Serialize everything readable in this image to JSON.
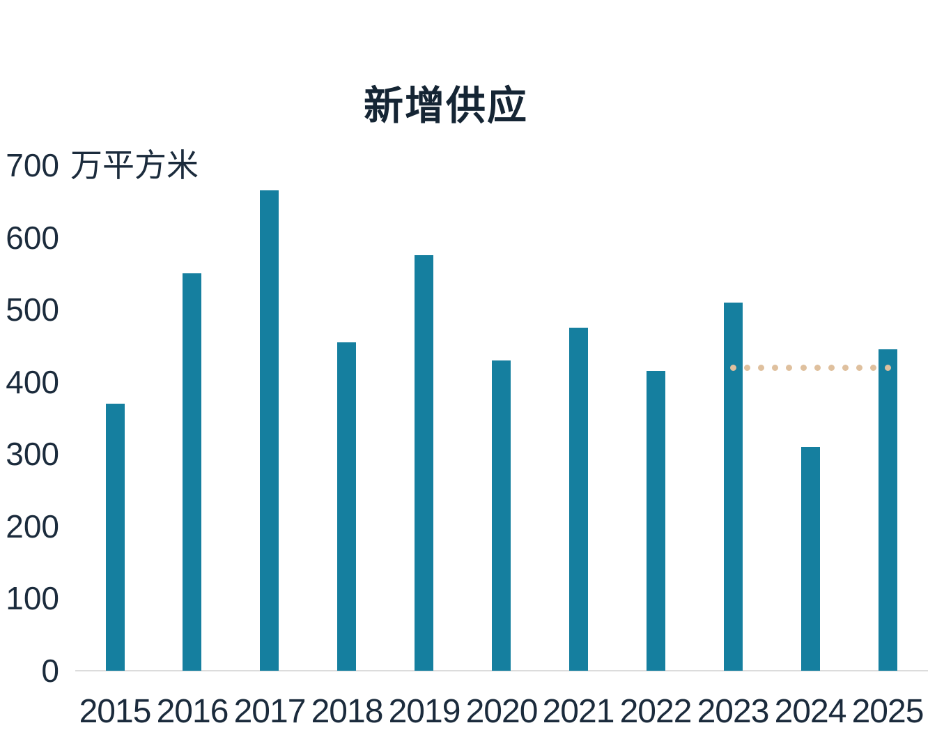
{
  "chart_data": {
    "type": "bar",
    "title": "新增供应",
    "ylabel_unit": "万平方米",
    "categories": [
      "2015",
      "2016",
      "2017",
      "2018",
      "2019",
      "2020",
      "2021",
      "2022",
      "2023",
      "2024",
      "2025"
    ],
    "values": [
      370,
      550,
      665,
      455,
      575,
      430,
      475,
      415,
      510,
      310,
      445
    ],
    "ylim": [
      0,
      700
    ],
    "yticks": [
      0,
      100,
      200,
      300,
      400,
      500,
      600,
      700
    ],
    "grid": false,
    "legend": "none",
    "dotted_reference_line": {
      "value": 420,
      "from_category": "2023",
      "to_category": "2025",
      "dot_count": 12,
      "color": "#dfc09e"
    },
    "colors": {
      "bar": "#157f9f",
      "title_text": "#152534",
      "axis_text": "#1b2b3c",
      "axis_line": "#dcdcdc",
      "background": "#ffffff"
    }
  }
}
